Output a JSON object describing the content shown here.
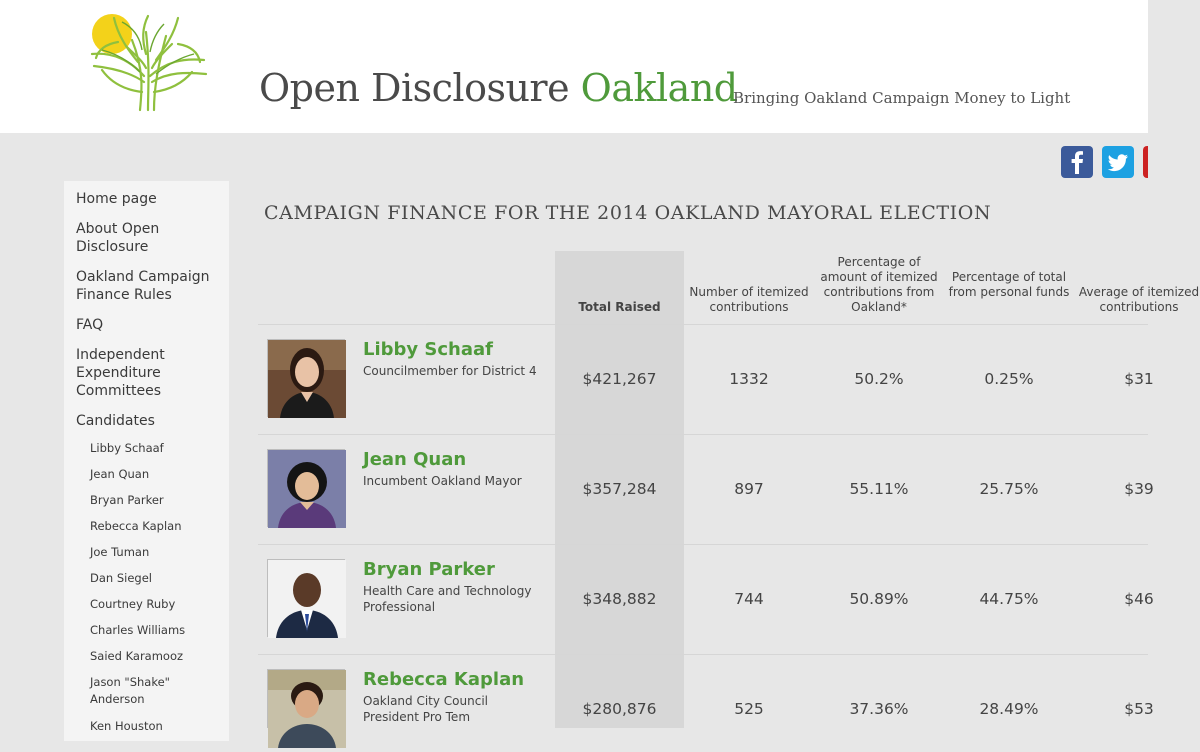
{
  "header": {
    "title_main": "Open Disclosure ",
    "title_accent": "Oakland",
    "tagline": "Bringing Oakland Campaign Money to Light"
  },
  "social": [
    {
      "name": "facebook-icon",
      "color": "#3b5a9a"
    },
    {
      "name": "twitter-icon",
      "color": "#1da1e2"
    },
    {
      "name": "youtube-icon",
      "color": "#cc2222"
    }
  ],
  "sidebar": {
    "items": [
      {
        "label": "Home page"
      },
      {
        "label": "About Open Disclosure"
      },
      {
        "label": "Oakland Campaign Finance Rules"
      },
      {
        "label": "FAQ"
      },
      {
        "label": "Independent Expenditure Committees"
      },
      {
        "label": "Candidates"
      }
    ],
    "candidates": [
      "Libby Schaaf",
      "Jean Quan",
      "Bryan Parker",
      "Rebecca Kaplan",
      "Joe Tuman",
      "Dan Siegel",
      "Courtney Ruby",
      "Charles Williams",
      "Saied Karamooz",
      "Jason \"Shake\" Anderson",
      "Ken Houston"
    ]
  },
  "main": {
    "heading": "CAMPAIGN FINANCE FOR THE 2014 OAKLAND MAYORAL ELECTION",
    "columns": {
      "total": "Total Raised",
      "count": "Number of itemized contributions",
      "pct_oakland": "Percentage of amount of itemized contributions from Oakland*",
      "pct_personal": "Percentage of total from personal funds",
      "average": "Average of itemized contributions"
    },
    "rows": [
      {
        "name": "Libby Schaaf",
        "role": "Councilmember for District 4",
        "total": "$421,267",
        "count": "1332",
        "pct_oakland": "50.2%",
        "pct_personal": "0.25%",
        "average": "$31"
      },
      {
        "name": "Jean Quan",
        "role": "Incumbent Oakland Mayor",
        "total": "$357,284",
        "count": "897",
        "pct_oakland": "55.11%",
        "pct_personal": "25.75%",
        "average": "$39"
      },
      {
        "name": "Bryan Parker",
        "role": "Health Care and Technology Professional",
        "total": "$348,882",
        "count": "744",
        "pct_oakland": "50.89%",
        "pct_personal": "44.75%",
        "average": "$46"
      },
      {
        "name": "Rebecca Kaplan",
        "role": "Oakland City Council President Pro Tem",
        "total": "$280,876",
        "count": "525",
        "pct_oakland": "37.36%",
        "pct_personal": "28.49%",
        "average": "$53"
      }
    ]
  },
  "colors": {
    "accent_green": "#4f9a3b",
    "total_column": "#d7d7d7",
    "background": "#e7e7e7"
  }
}
